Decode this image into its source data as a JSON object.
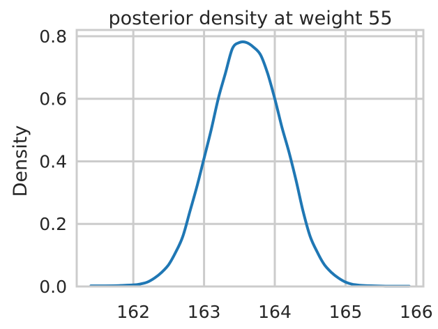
{
  "chart_data": {
    "type": "line",
    "title": "posterior density at weight 55",
    "xlabel": "",
    "ylabel": "Density",
    "xlim": [
      161.2,
      166.1
    ],
    "ylim": [
      0,
      0.82
    ],
    "xticks": [
      162,
      163,
      164,
      165,
      166
    ],
    "yticks": [
      0.0,
      0.2,
      0.4,
      0.6,
      0.8
    ],
    "xtick_labels": [
      "162",
      "163",
      "164",
      "165",
      "166"
    ],
    "ytick_labels": [
      "0.0",
      "0.2",
      "0.4",
      "0.6",
      "0.8"
    ],
    "grid": true,
    "line_color": "#1f77b4",
    "grid_color": "#cccccc",
    "series": [
      {
        "x": [
          161.4,
          161.6,
          161.8,
          162.0,
          162.1,
          162.2,
          162.3,
          162.4,
          162.5,
          162.6,
          162.7,
          162.8,
          162.9,
          163.0,
          163.1,
          163.2,
          163.3,
          163.4,
          163.5,
          163.6,
          163.7,
          163.8,
          163.9,
          164.0,
          164.1,
          164.2,
          164.3,
          164.4,
          164.5,
          164.6,
          164.7,
          164.8,
          164.9,
          165.0,
          165.1,
          165.2,
          165.4,
          165.6,
          165.9
        ],
        "values": [
          0.002,
          0.002,
          0.003,
          0.005,
          0.008,
          0.014,
          0.027,
          0.045,
          0.07,
          0.11,
          0.16,
          0.24,
          0.32,
          0.41,
          0.5,
          0.6,
          0.68,
          0.76,
          0.78,
          0.78,
          0.765,
          0.74,
          0.68,
          0.6,
          0.51,
          0.43,
          0.34,
          0.24,
          0.16,
          0.11,
          0.07,
          0.045,
          0.027,
          0.014,
          0.007,
          0.004,
          0.002,
          0.001,
          0.001
        ]
      }
    ]
  }
}
